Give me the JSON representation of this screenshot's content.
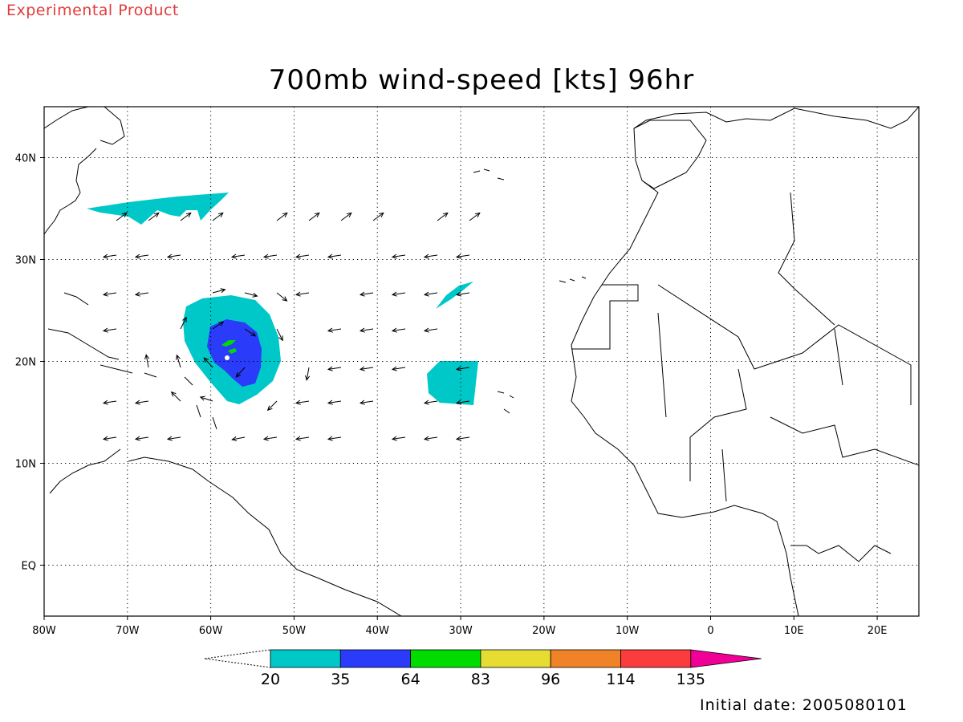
{
  "header": {
    "product_label": "Experimental Product",
    "title": "700mb wind-speed [kts] 96hr"
  },
  "footer": {
    "initial_date": "Initial date: 2005080101"
  },
  "axes": {
    "lon_labels": [
      "80W",
      "70W",
      "60W",
      "50W",
      "40W",
      "30W",
      "20W",
      "10W",
      "0",
      "10E",
      "20E"
    ],
    "lon_values": [
      -80,
      -70,
      -60,
      -50,
      -40,
      -30,
      -20,
      -10,
      0,
      10,
      20
    ],
    "lat_labels": [
      "40N",
      "30N",
      "20N",
      "10N",
      "EQ"
    ],
    "lat_values": [
      40,
      30,
      20,
      10,
      0
    ],
    "lon_range": [
      -80,
      25
    ],
    "lat_range": [
      -5,
      45
    ],
    "grid": "dotted"
  },
  "colorbar": {
    "levels": [
      "20",
      "35",
      "64",
      "83",
      "96",
      "114",
      "135"
    ],
    "colors": [
      "#00c8c8",
      "#2a3cfa",
      "#00dc00",
      "#e6dc32",
      "#f08228",
      "#fa3c3c",
      "#f00096"
    ]
  },
  "shading_colors": {
    "light": "#00c8c8",
    "dark": "#2a3cfa",
    "core": "#00dc00"
  }
}
